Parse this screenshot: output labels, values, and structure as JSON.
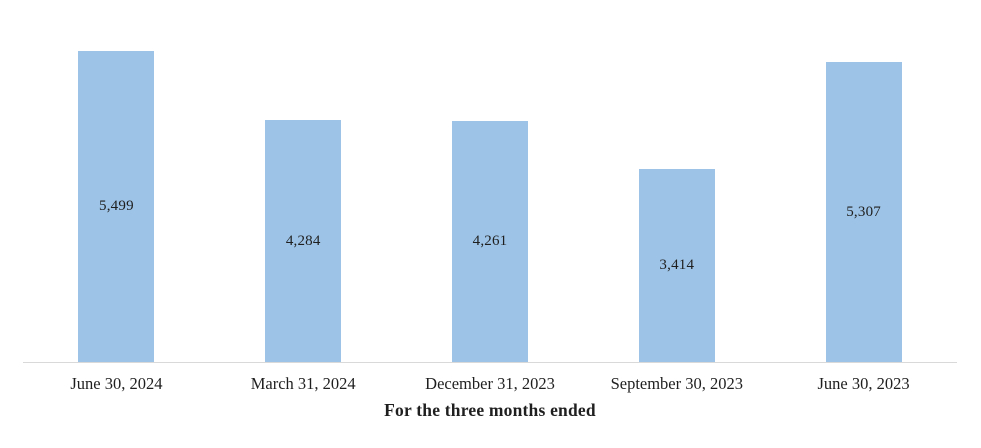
{
  "chart_data": {
    "type": "bar",
    "categories": [
      "June 30, 2024",
      "March 31, 2024",
      "December 31, 2023",
      "September 30, 2023",
      "June 30, 2023"
    ],
    "values": [
      5499,
      4284,
      4261,
      3414,
      5307
    ],
    "value_labels": [
      "5,499",
      "4,284",
      "4,261",
      "3,414",
      "5,307"
    ],
    "title": "",
    "xlabel": "For the three months ended",
    "ylabel": "",
    "ylim": [
      0,
      6000
    ],
    "grid": "off",
    "legend": "none",
    "bar_color": "#9DC3E6",
    "axis_line_color": "#D9D9D9",
    "text_color": "#1F1F1F"
  }
}
